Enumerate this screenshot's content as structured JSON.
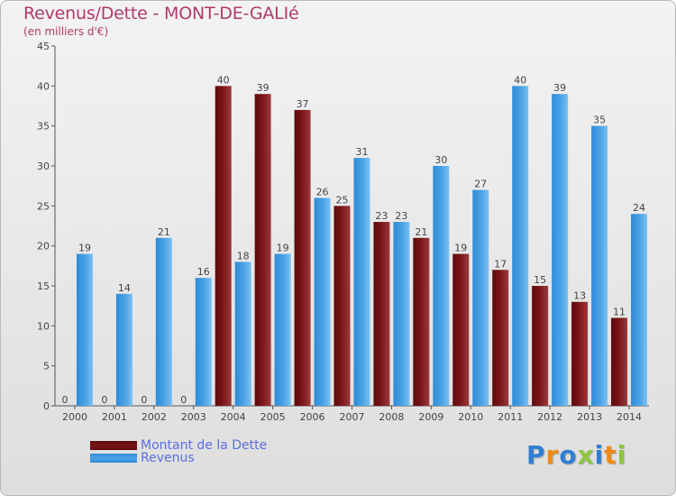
{
  "colors": {
    "debt": "#7a1418",
    "revenue": "#4aa3e6",
    "title": "#b03a6a",
    "legend_text": "#5a6fe0"
  },
  "logo": {
    "chars": [
      "P",
      "r",
      "o",
      "x",
      "i",
      "t",
      "i"
    ],
    "colors": [
      "#2f7fd4",
      "#f08a12",
      "#2f7fd4",
      "#8dc63f",
      "#2f7fd4",
      "#f08a12",
      "#8dc63f"
    ]
  },
  "chart_data": {
    "type": "bar",
    "title": "Revenus/Dette - MONT-DE-GALIé",
    "subtitle": "(en milliers d'€)",
    "xlabel": "",
    "ylabel": "",
    "ylim": [
      0,
      45
    ],
    "yticks": [
      0,
      5,
      10,
      15,
      20,
      25,
      30,
      35,
      40,
      45
    ],
    "grid": false,
    "categories": [
      "2000",
      "2001",
      "2002",
      "2003",
      "2004",
      "2005",
      "2006",
      "2007",
      "2008",
      "2009",
      "2010",
      "2011",
      "2012",
      "2013",
      "2014"
    ],
    "series": [
      {
        "name": "Montant de la Dette",
        "values": [
          0,
          0,
          0,
          0,
          40,
          39,
          37,
          25,
          23,
          21,
          19,
          17,
          15,
          13,
          11
        ]
      },
      {
        "name": "Revenus",
        "values": [
          19,
          14,
          21,
          16,
          18,
          19,
          26,
          31,
          23,
          30,
          27,
          40,
          39,
          35,
          24
        ]
      }
    ],
    "legend_position": "bottom-left"
  }
}
